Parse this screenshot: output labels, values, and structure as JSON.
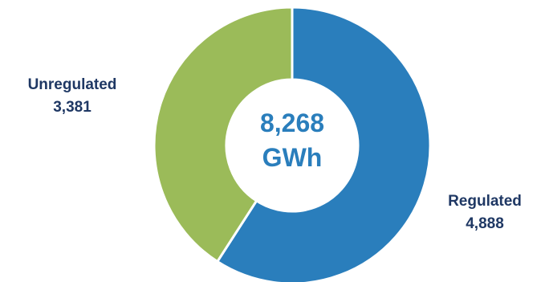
{
  "chart_data": {
    "type": "pie",
    "donut": true,
    "center_label": {
      "value": "8,268",
      "unit": "GWh"
    },
    "categories": [
      "Regulated",
      "Unregulated"
    ],
    "values": [
      4888,
      3381
    ],
    "value_labels": [
      "4,888",
      "3,381"
    ],
    "colors": [
      "#2a7ebc",
      "#9bbb59"
    ],
    "label_color": "#1f3864",
    "center_color": "#2a7ebc"
  }
}
